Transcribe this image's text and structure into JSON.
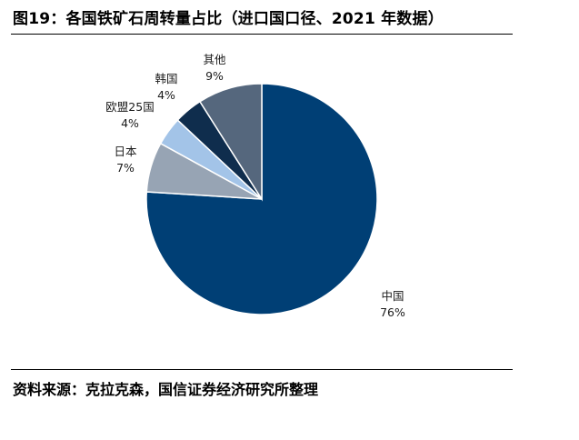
{
  "title": "图19：各国铁矿石周转量占比（进口国口径、2021 年数据）",
  "source": "资料来源：克拉克森，国信证券经济研究所整理",
  "chart_data": {
    "type": "pie",
    "slices": [
      {
        "name": "中国",
        "value": 76,
        "label": "76%",
        "color": "#003f75"
      },
      {
        "name": "日本",
        "value": 7,
        "label": "7%",
        "color": "#97a4b4"
      },
      {
        "name": "欧盟25国",
        "value": 4,
        "label": "4%",
        "color": "#a3c4e8"
      },
      {
        "name": "韩国",
        "value": 4,
        "label": "4%",
        "color": "#0f2d4d"
      },
      {
        "name": "其他",
        "value": 9,
        "label": "9%",
        "color": "#55677d"
      }
    ]
  }
}
